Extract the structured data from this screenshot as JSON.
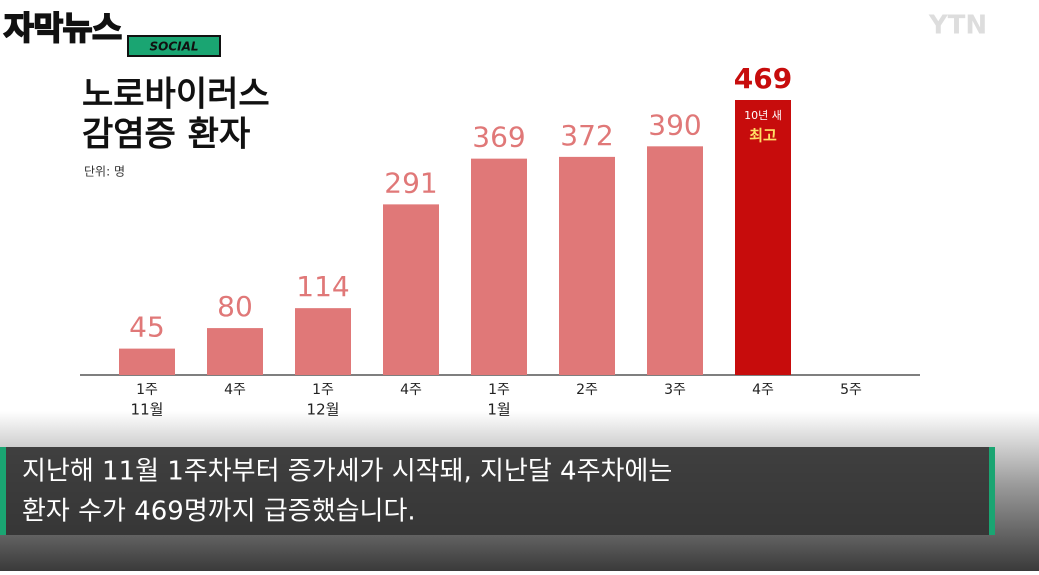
{
  "chart_data": {
    "type": "bar",
    "title": [
      "노로바이러스",
      "감염증 환자"
    ],
    "subtitle": "단위: 명",
    "categories": [
      "1주",
      "4주",
      "1주",
      "4주",
      "1주",
      "2주",
      "3주",
      "4주",
      "5주"
    ],
    "month_labels": [
      "11월",
      null,
      "12월",
      null,
      "1월",
      null,
      null,
      null,
      null
    ],
    "values": [
      45,
      80,
      114,
      291,
      369,
      372,
      390,
      469,
      null
    ],
    "colors": [
      "#e07878",
      "#e07878",
      "#e07878",
      "#e07878",
      "#e07878",
      "#e07878",
      "#e07878",
      "#c70c0c",
      null
    ],
    "annotation": [
      "10년 새",
      "최고"
    ]
  },
  "overlay": {
    "logo": "자막뉴스",
    "logo_tag": "SOCIAL",
    "broadcaster": "YTN",
    "caption": [
      "지난해 11월 1주차부터 증가세가 시작돼, 지난달 4주차에는",
      "환자 수가 469명까지 급증했습니다."
    ]
  }
}
